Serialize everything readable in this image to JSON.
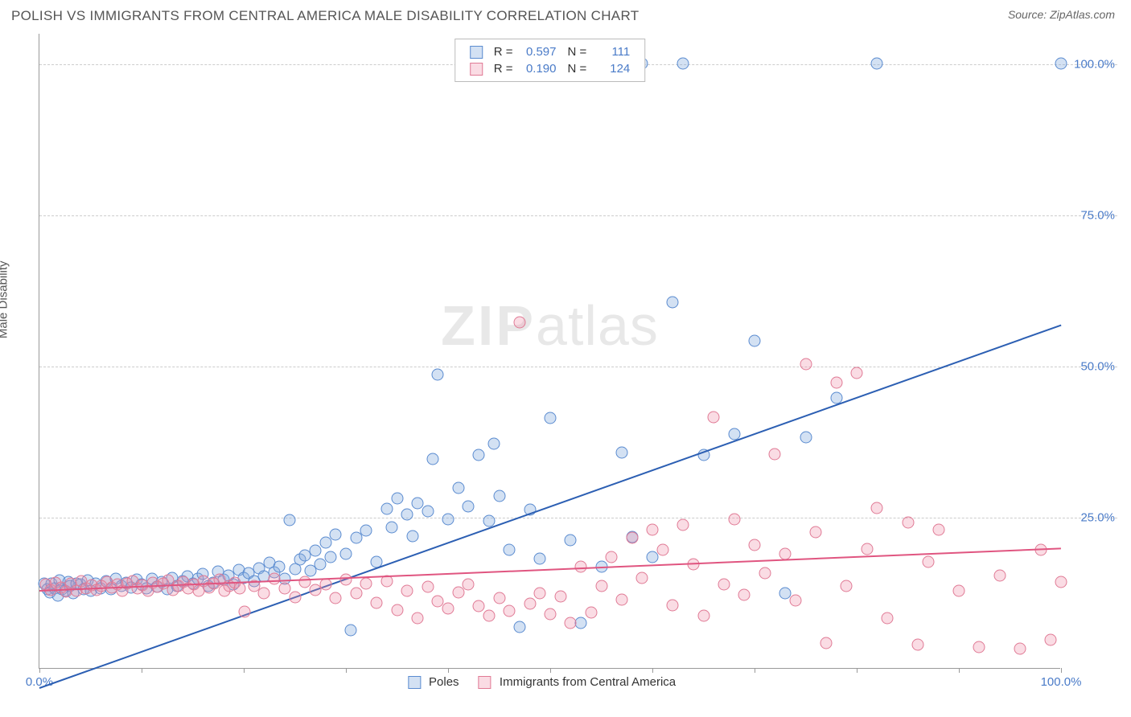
{
  "header": {
    "title": "POLISH VS IMMIGRANTS FROM CENTRAL AMERICA MALE DISABILITY CORRELATION CHART",
    "source": "Source: ZipAtlas.com"
  },
  "chart": {
    "type": "scatter",
    "ylabel": "Male Disability",
    "watermark_a": "ZIP",
    "watermark_b": "atlas",
    "xlim": [
      0,
      100
    ],
    "ylim": [
      0,
      105
    ],
    "xticks": [
      0,
      10,
      20,
      30,
      40,
      50,
      60,
      70,
      80,
      90,
      100
    ],
    "xticks_labeled": {
      "0": "0.0%",
      "100": "100.0%"
    },
    "yticks": [
      25,
      50,
      75,
      100
    ],
    "ytick_labels": {
      "25": "25.0%",
      "50": "50.0%",
      "75": "75.0%",
      "100": "100.0%"
    },
    "grid_color": "#cccccc",
    "background_color": "#ffffff",
    "axis_color": "#999999",
    "label_color": "#4a7bc8",
    "series": [
      {
        "name": "Poles",
        "legend_label": "Poles",
        "color_fill": "rgba(129,169,222,0.35)",
        "color_stroke": "#5a8bd0",
        "marker_size": 15,
        "R": "0.597",
        "N": "111",
        "trend": {
          "x1": 0,
          "y1": -3,
          "x2": 100,
          "y2": 57,
          "color": "#2c5fb3",
          "width": 2
        },
        "points": [
          [
            0.5,
            14
          ],
          [
            0.8,
            13
          ],
          [
            1,
            12.5
          ],
          [
            1.2,
            14
          ],
          [
            1.5,
            13.2
          ],
          [
            1.8,
            12
          ],
          [
            2,
            14.5
          ],
          [
            2.2,
            13
          ],
          [
            2.5,
            12.8
          ],
          [
            2.8,
            14.2
          ],
          [
            3,
            13.5
          ],
          [
            3.3,
            12.3
          ],
          [
            3.6,
            14
          ],
          [
            4,
            13.8
          ],
          [
            4.3,
            13
          ],
          [
            4.7,
            14.5
          ],
          [
            5,
            12.7
          ],
          [
            5.5,
            13.9
          ],
          [
            6,
            13.2
          ],
          [
            6.5,
            14.3
          ],
          [
            7,
            13
          ],
          [
            7.5,
            14.8
          ],
          [
            8,
            13.6
          ],
          [
            8.5,
            14.1
          ],
          [
            9,
            13.3
          ],
          [
            9.5,
            14.6
          ],
          [
            10,
            13.8
          ],
          [
            10.5,
            13.1
          ],
          [
            11,
            14.7
          ],
          [
            11.5,
            13.4
          ],
          [
            12,
            14.2
          ],
          [
            12.5,
            13
          ],
          [
            13,
            14.9
          ],
          [
            13.5,
            13.6
          ],
          [
            14,
            14.4
          ],
          [
            14.5,
            15.2
          ],
          [
            15,
            13.9
          ],
          [
            15.5,
            14.8
          ],
          [
            16,
            15.6
          ],
          [
            16.5,
            13.5
          ],
          [
            17,
            14.1
          ],
          [
            17.5,
            16
          ],
          [
            18,
            14.6
          ],
          [
            18.5,
            15.3
          ],
          [
            19,
            13.8
          ],
          [
            19.5,
            16.2
          ],
          [
            20,
            14.9
          ],
          [
            20.5,
            15.7
          ],
          [
            21,
            14.3
          ],
          [
            21.5,
            16.5
          ],
          [
            22,
            15.1
          ],
          [
            22.5,
            17.4
          ],
          [
            23,
            15.8
          ],
          [
            23.5,
            16.7
          ],
          [
            24,
            14.7
          ],
          [
            24.5,
            24.5
          ],
          [
            25,
            16.3
          ],
          [
            25.5,
            17.9
          ],
          [
            26,
            18.6
          ],
          [
            26.5,
            16.1
          ],
          [
            27,
            19.4
          ],
          [
            27.5,
            17.2
          ],
          [
            28,
            20.8
          ],
          [
            28.5,
            18.3
          ],
          [
            29,
            22.1
          ],
          [
            30,
            18.9
          ],
          [
            30.5,
            6.2
          ],
          [
            31,
            21.5
          ],
          [
            32,
            22.7
          ],
          [
            33,
            17.5
          ],
          [
            34,
            26.3
          ],
          [
            34.5,
            23.2
          ],
          [
            35,
            28.1
          ],
          [
            36,
            25.4
          ],
          [
            36.5,
            21.8
          ],
          [
            37,
            27.2
          ],
          [
            38,
            25.9
          ],
          [
            38.5,
            34.5
          ],
          [
            39,
            48.5
          ],
          [
            40,
            24.6
          ],
          [
            41,
            29.8
          ],
          [
            42,
            26.7
          ],
          [
            43,
            35.2
          ],
          [
            44,
            24.3
          ],
          [
            44.5,
            37.1
          ],
          [
            45,
            28.5
          ],
          [
            46,
            19.6
          ],
          [
            47,
            6.8
          ],
          [
            48,
            26.2
          ],
          [
            49,
            18.1
          ],
          [
            50,
            41.3
          ],
          [
            52,
            21.2
          ],
          [
            53,
            7.4
          ],
          [
            55,
            16.8
          ],
          [
            55.5,
            100
          ],
          [
            57,
            35.6
          ],
          [
            58,
            21.7
          ],
          [
            59,
            100
          ],
          [
            60,
            18.4
          ],
          [
            62,
            60.5
          ],
          [
            63,
            100
          ],
          [
            65,
            35.2
          ],
          [
            68,
            38.7
          ],
          [
            70,
            54.1
          ],
          [
            73,
            12.3
          ],
          [
            75,
            38.2
          ],
          [
            78,
            44.6
          ],
          [
            82,
            100
          ],
          [
            100,
            100
          ]
        ]
      },
      {
        "name": "Immigrants from Central America",
        "legend_label": "Immigrants from Central America",
        "color_fill": "rgba(238,140,165,0.30)",
        "color_stroke": "#e07a95",
        "marker_size": 15,
        "R": "0.190",
        "N": "124",
        "trend": {
          "x1": 0,
          "y1": 13,
          "x2": 100,
          "y2": 20,
          "color": "#e05580",
          "width": 2
        },
        "points": [
          [
            0.6,
            13.8
          ],
          [
            1.1,
            12.9
          ],
          [
            1.6,
            14.1
          ],
          [
            2.1,
            13.3
          ],
          [
            2.6,
            12.6
          ],
          [
            3.1,
            13.9
          ],
          [
            3.6,
            12.8
          ],
          [
            4.1,
            14.3
          ],
          [
            4.6,
            13.1
          ],
          [
            5.1,
            13.7
          ],
          [
            5.6,
            12.9
          ],
          [
            6.1,
            13.6
          ],
          [
            6.6,
            14.2
          ],
          [
            7.1,
            13.3
          ],
          [
            7.6,
            13.8
          ],
          [
            8.1,
            12.7
          ],
          [
            8.6,
            13.9
          ],
          [
            9.1,
            14.4
          ],
          [
            9.6,
            13.2
          ],
          [
            10.1,
            13.7
          ],
          [
            10.6,
            12.8
          ],
          [
            11.1,
            14.1
          ],
          [
            11.6,
            13.4
          ],
          [
            12.1,
            13.9
          ],
          [
            12.6,
            14.5
          ],
          [
            13.1,
            12.9
          ],
          [
            13.6,
            13.6
          ],
          [
            14.1,
            14.2
          ],
          [
            14.6,
            13.1
          ],
          [
            15.1,
            13.8
          ],
          [
            15.6,
            12.7
          ],
          [
            16.1,
            14.4
          ],
          [
            16.6,
            13.3
          ],
          [
            17.1,
            13.9
          ],
          [
            17.6,
            14.6
          ],
          [
            18.1,
            12.8
          ],
          [
            18.6,
            13.5
          ],
          [
            19.1,
            14.1
          ],
          [
            19.6,
            13.2
          ],
          [
            20.1,
            9.3
          ],
          [
            21,
            13.6
          ],
          [
            22,
            12.4
          ],
          [
            23,
            14.8
          ],
          [
            24,
            13.1
          ],
          [
            25,
            11.7
          ],
          [
            26,
            14.2
          ],
          [
            27,
            12.9
          ],
          [
            28,
            13.8
          ],
          [
            29,
            11.5
          ],
          [
            30,
            14.6
          ],
          [
            31,
            12.3
          ],
          [
            32,
            13.9
          ],
          [
            33,
            10.8
          ],
          [
            34,
            14.3
          ],
          [
            35,
            9.6
          ],
          [
            36,
            12.7
          ],
          [
            37,
            8.3
          ],
          [
            38,
            13.4
          ],
          [
            39,
            11.1
          ],
          [
            40,
            9.8
          ],
          [
            41,
            12.5
          ],
          [
            42,
            13.8
          ],
          [
            43,
            10.2
          ],
          [
            44,
            8.7
          ],
          [
            45,
            11.6
          ],
          [
            46,
            9.4
          ],
          [
            47,
            57.2
          ],
          [
            48,
            10.7
          ],
          [
            49,
            12.3
          ],
          [
            50,
            8.9
          ],
          [
            51,
            11.8
          ],
          [
            52,
            7.5
          ],
          [
            53,
            16.8
          ],
          [
            54,
            9.2
          ],
          [
            55,
            13.6
          ],
          [
            56,
            18.4
          ],
          [
            57,
            11.3
          ],
          [
            58,
            21.6
          ],
          [
            59,
            14.9
          ],
          [
            60,
            22.8
          ],
          [
            61,
            19.5
          ],
          [
            62,
            10.4
          ],
          [
            63,
            23.7
          ],
          [
            64,
            17.2
          ],
          [
            65,
            8.6
          ],
          [
            66,
            41.5
          ],
          [
            67,
            13.8
          ],
          [
            68,
            24.6
          ],
          [
            69,
            12.1
          ],
          [
            70,
            20.3
          ],
          [
            71,
            15.7
          ],
          [
            72,
            35.4
          ],
          [
            73,
            18.9
          ],
          [
            74,
            11.2
          ],
          [
            75,
            50.3
          ],
          [
            76,
            22.5
          ],
          [
            77,
            4.1
          ],
          [
            78,
            47.2
          ],
          [
            79,
            13.6
          ],
          [
            80,
            48.8
          ],
          [
            81,
            19.7
          ],
          [
            82,
            26.4
          ],
          [
            83,
            8.3
          ],
          [
            85,
            24.1
          ],
          [
            86,
            3.8
          ],
          [
            87,
            17.5
          ],
          [
            88,
            22.9
          ],
          [
            90,
            12.7
          ],
          [
            92,
            3.5
          ],
          [
            94,
            15.3
          ],
          [
            96,
            3.2
          ],
          [
            98,
            19.6
          ],
          [
            99,
            4.6
          ],
          [
            100,
            14.2
          ]
        ]
      }
    ]
  }
}
